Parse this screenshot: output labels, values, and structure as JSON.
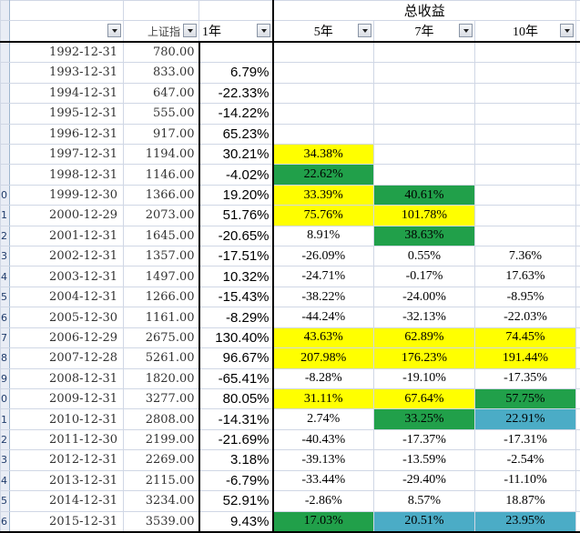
{
  "header": {
    "total_return": "总收益",
    "index_col": "上证指",
    "y1": "1年",
    "y5": "5年",
    "y7": "7年",
    "y10": "10年"
  },
  "row_numbers": [
    "",
    "",
    "",
    "",
    "",
    "",
    "",
    "",
    "",
    "0",
    "1",
    "2",
    "3",
    "4",
    "5",
    "6",
    "7",
    "8",
    "9",
    "0",
    "1",
    "2",
    "3",
    "4",
    "5",
    "6",
    "7",
    "8",
    "9"
  ],
  "colors": {
    "yellow": "#ffff00",
    "green": "#21a04a",
    "blue": "#4bacc6"
  },
  "rows": [
    {
      "date": "1992-12-31",
      "index": "780.00",
      "r1": "",
      "r5": "",
      "r7": "",
      "r10": "",
      "c5": "",
      "c7": "",
      "c10": ""
    },
    {
      "date": "1993-12-31",
      "index": "833.00",
      "r1": "6.79%",
      "r5": "",
      "r7": "",
      "r10": "",
      "c5": "",
      "c7": "",
      "c10": ""
    },
    {
      "date": "1994-12-31",
      "index": "647.00",
      "r1": "-22.33%",
      "r5": "",
      "r7": "",
      "r10": "",
      "c5": "",
      "c7": "",
      "c10": ""
    },
    {
      "date": "1995-12-31",
      "index": "555.00",
      "r1": "-14.22%",
      "r5": "",
      "r7": "",
      "r10": "",
      "c5": "",
      "c7": "",
      "c10": ""
    },
    {
      "date": "1996-12-31",
      "index": "917.00",
      "r1": "65.23%",
      "r5": "",
      "r7": "",
      "r10": "",
      "c5": "",
      "c7": "",
      "c10": ""
    },
    {
      "date": "1997-12-31",
      "index": "1194.00",
      "r1": "30.21%",
      "r5": "34.38%",
      "r7": "",
      "r10": "",
      "c5": "y",
      "c7": "",
      "c10": ""
    },
    {
      "date": "1998-12-31",
      "index": "1146.00",
      "r1": "-4.02%",
      "r5": "22.62%",
      "r7": "",
      "r10": "",
      "c5": "g",
      "c7": "",
      "c10": ""
    },
    {
      "date": "1999-12-30",
      "index": "1366.00",
      "r1": "19.20%",
      "r5": "33.39%",
      "r7": "40.61%",
      "r10": "",
      "c5": "y",
      "c7": "g",
      "c10": ""
    },
    {
      "date": "2000-12-29",
      "index": "2073.00",
      "r1": "51.76%",
      "r5": "75.76%",
      "r7": "101.78%",
      "r10": "",
      "c5": "y",
      "c7": "y",
      "c10": ""
    },
    {
      "date": "2001-12-31",
      "index": "1645.00",
      "r1": "-20.65%",
      "r5": "8.91%",
      "r7": "38.63%",
      "r10": "",
      "c5": "",
      "c7": "g",
      "c10": ""
    },
    {
      "date": "2002-12-31",
      "index": "1357.00",
      "r1": "-17.51%",
      "r5": "-26.09%",
      "r7": "0.55%",
      "r10": "7.36%",
      "c5": "",
      "c7": "",
      "c10": ""
    },
    {
      "date": "2003-12-31",
      "index": "1497.00",
      "r1": "10.32%",
      "r5": "-24.71%",
      "r7": "-0.17%",
      "r10": "17.63%",
      "c5": "",
      "c7": "",
      "c10": ""
    },
    {
      "date": "2004-12-31",
      "index": "1266.00",
      "r1": "-15.43%",
      "r5": "-38.22%",
      "r7": "-24.00%",
      "r10": "-8.95%",
      "c5": "",
      "c7": "",
      "c10": ""
    },
    {
      "date": "2005-12-30",
      "index": "1161.00",
      "r1": "-8.29%",
      "r5": "-44.24%",
      "r7": "-32.13%",
      "r10": "-22.03%",
      "c5": "",
      "c7": "",
      "c10": ""
    },
    {
      "date": "2006-12-29",
      "index": "2675.00",
      "r1": "130.40%",
      "r5": "43.63%",
      "r7": "62.89%",
      "r10": "74.45%",
      "c5": "y",
      "c7": "y",
      "c10": "y"
    },
    {
      "date": "2007-12-28",
      "index": "5261.00",
      "r1": "96.67%",
      "r5": "207.98%",
      "r7": "176.23%",
      "r10": "191.44%",
      "c5": "y",
      "c7": "y",
      "c10": "y"
    },
    {
      "date": "2008-12-31",
      "index": "1820.00",
      "r1": "-65.41%",
      "r5": "-8.28%",
      "r7": "-19.10%",
      "r10": "-17.35%",
      "c5": "",
      "c7": "",
      "c10": ""
    },
    {
      "date": "2009-12-31",
      "index": "3277.00",
      "r1": "80.05%",
      "r5": "31.11%",
      "r7": "67.64%",
      "r10": "57.75%",
      "c5": "y",
      "c7": "y",
      "c10": "g"
    },
    {
      "date": "2010-12-31",
      "index": "2808.00",
      "r1": "-14.31%",
      "r5": "2.74%",
      "r7": "33.25%",
      "r10": "22.91%",
      "c5": "",
      "c7": "g",
      "c10": "b"
    },
    {
      "date": "2011-12-30",
      "index": "2199.00",
      "r1": "-21.69%",
      "r5": "-40.43%",
      "r7": "-17.37%",
      "r10": "-17.31%",
      "c5": "",
      "c7": "",
      "c10": ""
    },
    {
      "date": "2012-12-31",
      "index": "2269.00",
      "r1": "3.18%",
      "r5": "-39.13%",
      "r7": "-13.59%",
      "r10": "-2.54%",
      "c5": "",
      "c7": "",
      "c10": ""
    },
    {
      "date": "2013-12-31",
      "index": "2115.00",
      "r1": "-6.79%",
      "r5": "-33.44%",
      "r7": "-29.40%",
      "r10": "-11.10%",
      "c5": "",
      "c7": "",
      "c10": ""
    },
    {
      "date": "2014-12-31",
      "index": "3234.00",
      "r1": "52.91%",
      "r5": "-2.86%",
      "r7": "8.57%",
      "r10": "18.87%",
      "c5": "",
      "c7": "",
      "c10": ""
    },
    {
      "date": "2015-12-31",
      "index": "3539.00",
      "r1": "9.43%",
      "r5": "17.03%",
      "r7": "20.51%",
      "r10": "23.95%",
      "c5": "g",
      "c7": "b",
      "c10": "b"
    }
  ]
}
